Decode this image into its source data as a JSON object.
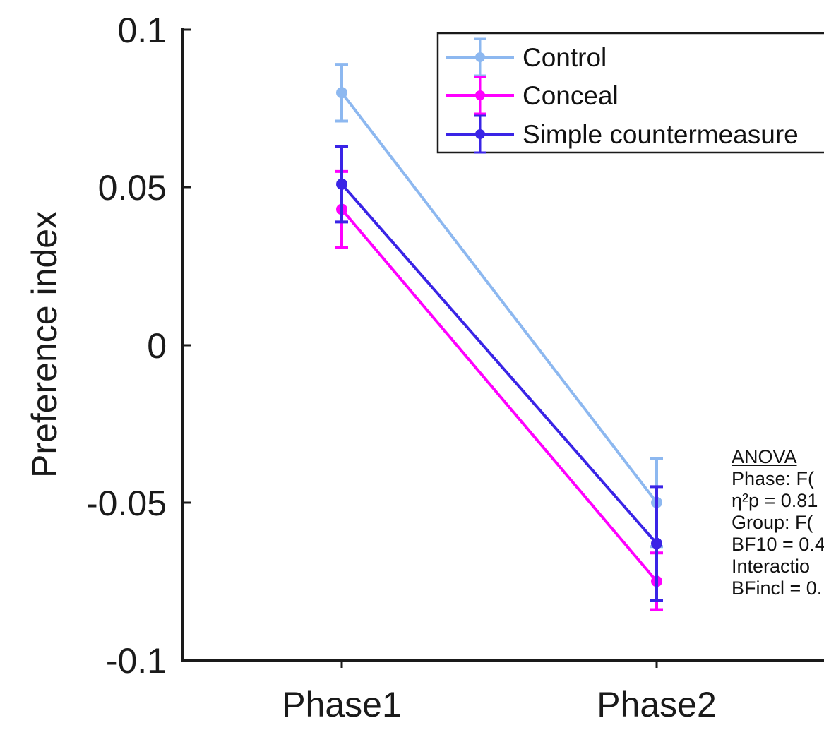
{
  "chart_data": {
    "type": "line",
    "categories": [
      "Phase1",
      "Phase2"
    ],
    "ylabel": "Preference index",
    "ylim": [
      -0.1,
      0.1
    ],
    "yticks": [
      "0.1",
      "0.05",
      "0",
      "-0.05",
      "-0.1"
    ],
    "ytick_values": [
      0.1,
      0.05,
      0,
      -0.05,
      -0.1
    ],
    "grid": false,
    "legend_position": "top-right",
    "series": [
      {
        "name": "Control",
        "color": "#8db8f0",
        "values": [
          0.08,
          -0.05
        ],
        "errors": [
          0.009,
          0.014
        ]
      },
      {
        "name": "Conceal",
        "color": "#ff00ff",
        "values": [
          0.043,
          -0.075
        ],
        "errors": [
          0.012,
          0.009
        ]
      },
      {
        "name": "Simple countermeasure",
        "color": "#3a24e6",
        "values": [
          0.051,
          -0.063
        ],
        "errors": [
          0.012,
          0.018
        ]
      }
    ],
    "annotation": {
      "heading": "ANOVA",
      "lines": [
        "Phase: F(",
        "η²p = 0.81",
        "Group: F(",
        "BF10 = 0.4",
        "Interactio",
        "BFincl = 0."
      ]
    }
  }
}
